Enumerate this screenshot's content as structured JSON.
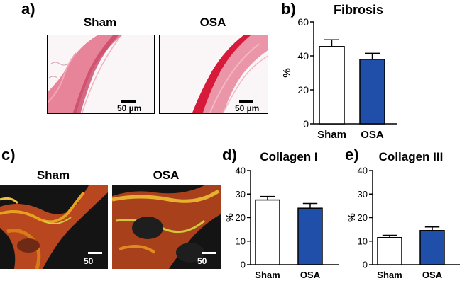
{
  "panels": {
    "a": {
      "letter": "a)",
      "images": [
        {
          "label": "Sham",
          "scale": "50 µm"
        },
        {
          "label": "OSA",
          "scale": "50 µm"
        }
      ]
    },
    "c": {
      "letter": "c)",
      "images": [
        {
          "label": "Sham",
          "scale": "50 µm"
        },
        {
          "label": "OSA",
          "scale": "50 µm"
        }
      ]
    },
    "b": {
      "letter": "b)"
    },
    "d": {
      "letter": "d)"
    },
    "e": {
      "letter": "e)"
    }
  },
  "colors": {
    "sham_fill": "#ffffff",
    "osa_fill": "#1f4fa8",
    "stain_pink": "#e0607a",
    "stain_red": "#d81a3a"
  },
  "chart_data": [
    {
      "id": "b",
      "type": "bar",
      "title": "Fibrosis",
      "ylabel": "%",
      "categories": [
        "Sham",
        "OSA"
      ],
      "values": [
        45.5,
        38
      ],
      "errors": [
        4,
        3.5
      ],
      "ylim": [
        0,
        60
      ],
      "yticks": [
        0,
        20,
        40,
        60
      ]
    },
    {
      "id": "d",
      "type": "bar",
      "title": "Collagen I",
      "ylabel": "%",
      "categories": [
        "Sham",
        "OSA"
      ],
      "values": [
        27.5,
        24
      ],
      "errors": [
        1.5,
        2
      ],
      "ylim": [
        0,
        40
      ],
      "yticks": [
        0,
        10,
        20,
        30,
        40
      ]
    },
    {
      "id": "e",
      "type": "bar",
      "title": "Collagen III",
      "ylabel": "%",
      "categories": [
        "Sham",
        "OSA"
      ],
      "values": [
        11.5,
        14.5
      ],
      "errors": [
        1,
        1.5
      ],
      "ylim": [
        0,
        40
      ],
      "yticks": [
        0,
        10,
        20,
        30,
        40
      ]
    }
  ]
}
